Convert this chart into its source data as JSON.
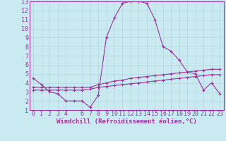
{
  "background_color": "#c8eaf0",
  "grid_color": "#c0dce4",
  "line_color": "#993399",
  "xlabel": "Windchill (Refroidissement éolien,°C)",
  "xlim": [
    -0.5,
    23.5
  ],
  "ylim": [
    1,
    13
  ],
  "xticks": [
    0,
    1,
    2,
    3,
    4,
    6,
    7,
    8,
    9,
    10,
    11,
    12,
    13,
    14,
    15,
    16,
    17,
    18,
    19,
    20,
    21,
    22,
    23
  ],
  "yticks": [
    1,
    2,
    3,
    4,
    5,
    6,
    7,
    8,
    9,
    10,
    11,
    12,
    13
  ],
  "series1_x": [
    0,
    1,
    2,
    3,
    4,
    5,
    6,
    7,
    8,
    9,
    10,
    11,
    12,
    13,
    14,
    15,
    16,
    17,
    18,
    19,
    20,
    21,
    22,
    23
  ],
  "series1_y": [
    4.5,
    3.8,
    3.0,
    2.8,
    2.0,
    2.0,
    2.0,
    1.3,
    2.6,
    9.0,
    11.2,
    12.8,
    13.0,
    13.0,
    12.8,
    11.0,
    8.0,
    7.5,
    6.5,
    5.2,
    5.0,
    3.2,
    4.0,
    2.8
  ],
  "series2_x": [
    0,
    1,
    2,
    3,
    4,
    5,
    6,
    7,
    8,
    9,
    10,
    11,
    12,
    13,
    14,
    15,
    16,
    17,
    18,
    19,
    20,
    21,
    22,
    23
  ],
  "series2_y": [
    3.5,
    3.5,
    3.5,
    3.5,
    3.5,
    3.5,
    3.5,
    3.5,
    3.8,
    4.0,
    4.2,
    4.3,
    4.5,
    4.6,
    4.7,
    4.8,
    4.9,
    5.0,
    5.1,
    5.2,
    5.3,
    5.4,
    5.5,
    5.5
  ],
  "series3_x": [
    0,
    1,
    2,
    3,
    4,
    5,
    6,
    7,
    8,
    9,
    10,
    11,
    12,
    13,
    14,
    15,
    16,
    17,
    18,
    19,
    20,
    21,
    22,
    23
  ],
  "series3_y": [
    3.2,
    3.2,
    3.2,
    3.2,
    3.2,
    3.2,
    3.2,
    3.3,
    3.5,
    3.6,
    3.7,
    3.8,
    3.9,
    4.0,
    4.1,
    4.2,
    4.3,
    4.4,
    4.5,
    4.6,
    4.7,
    4.8,
    4.9,
    4.9
  ],
  "xlabel_fontsize": 6.5,
  "tick_fontsize": 6,
  "linewidth": 0.8,
  "markersize": 3.0
}
